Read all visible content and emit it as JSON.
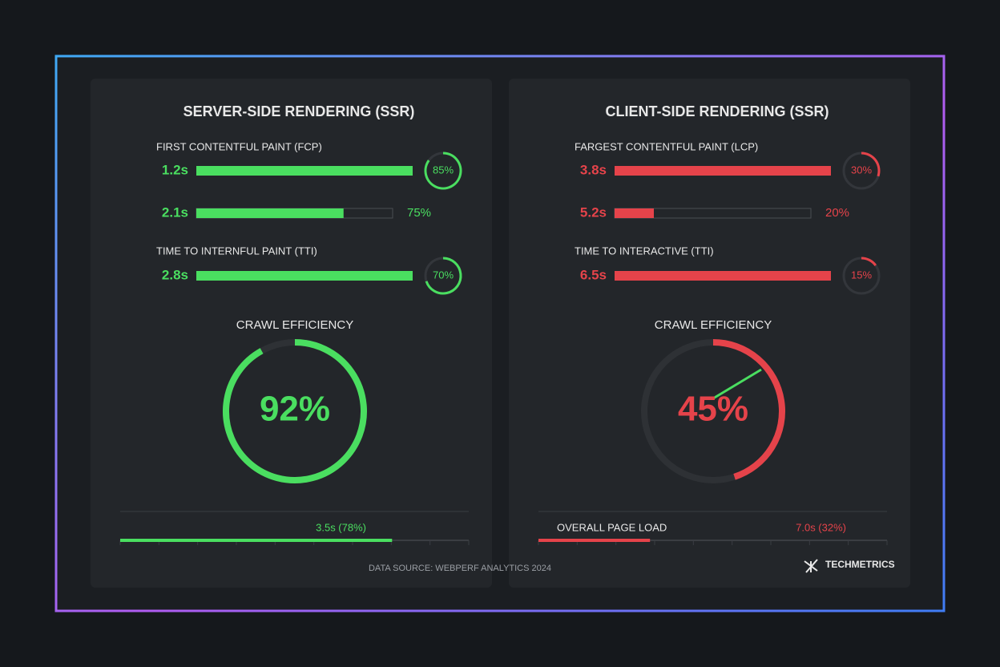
{
  "panels": [
    {
      "title": "SERVER-SIDE RENDERING (SSR)",
      "accent": "#4ade60",
      "metrics": [
        {
          "label": "FIRST CONTENTFUL PAINT (FCP)",
          "time": "1.2s",
          "percent": 85,
          "percent_label": "85%",
          "ring": true
        },
        {
          "time": "2.1s",
          "percent": 75,
          "percent_label": "75%",
          "ring": false
        },
        {
          "label": "TIME TO INTERNFUL PAINT (TTI)",
          "time": "2.8s",
          "percent": 70,
          "percent_label": "70%",
          "ring": true
        }
      ],
      "crawl": {
        "label": "CRAWL EFFICIENCY",
        "percent": 92,
        "percent_label": "92%"
      },
      "overall": {
        "value_label": "3.5s (78%)",
        "percent": 78
      }
    },
    {
      "title": "CLIENT-SIDE RENDERING (SSR)",
      "accent": "#e5434a",
      "metrics": [
        {
          "label": "FARGEST CONTENTFUL PAINT (LCP)",
          "time": "3.8s",
          "percent": 30,
          "percent_label": "30%",
          "ring": true
        },
        {
          "time": "5.2s",
          "percent": 20,
          "percent_label": "20%",
          "ring": false
        },
        {
          "label": "TIME TO INTERACTIVE (TTI)",
          "time": "6.5s",
          "percent": 15,
          "percent_label": "15%",
          "ring": true
        }
      ],
      "crawl": {
        "label": "CRAWL EFFICIENCY",
        "percent": 45,
        "percent_label": "45%"
      },
      "overall": {
        "label": "OVERALL PAGE LOAD",
        "value_label": "7.0s (32%)",
        "percent": 32
      }
    }
  ],
  "footer": {
    "source": "DATA SOURCE: WEBPERF ANALYTICS 2024",
    "brand": "TECHMETRICS"
  }
}
